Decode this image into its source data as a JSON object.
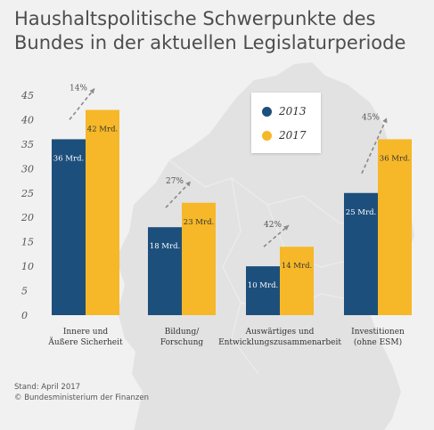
{
  "title_line1": "Haushaltspolitische Schwerpunkte des",
  "title_line2": "Bundes in der aktuellen Legislaturperiode",
  "footer": {
    "stand": "Stand: April 2017",
    "source": "© Bundesministerium der Finanzen"
  },
  "colors": {
    "series_2013": "#1d4f7c",
    "series_2017": "#f6b828",
    "background": "#f1f1f1",
    "map": "#e2e2e2",
    "axis_text": "#555555"
  },
  "chart_data": {
    "type": "bar",
    "title": "Haushaltspolitische Schwerpunkte des Bundes in der aktuellen Legislaturperiode",
    "xlabel": "",
    "ylabel": "",
    "ylim": [
      0,
      45
    ],
    "yticks": [
      "0",
      "5",
      "10",
      "15",
      "20",
      "25",
      "30",
      "35",
      "40",
      "45"
    ],
    "grid": false,
    "legend_position": "top-right",
    "categories": [
      [
        "Innere und",
        "Äußere Sicherheit"
      ],
      [
        "Bildung/",
        "Forschung"
      ],
      [
        "Auswärtiges und",
        "Entwicklungszusammenarbeit"
      ],
      [
        "Investitionen",
        "(ohne ESM)"
      ]
    ],
    "series": [
      {
        "name": "2013",
        "values": [
          36,
          18,
          10,
          25
        ],
        "labels": [
          "36 Mrd.",
          "18 Mrd.",
          "10 Mrd.",
          "25 Mrd."
        ]
      },
      {
        "name": "2017",
        "values": [
          42,
          23,
          14,
          36
        ],
        "labels": [
          "42 Mrd.",
          "23 Mrd.",
          "14 Mrd.",
          "36 Mrd."
        ]
      }
    ],
    "growth_labels": [
      "14%",
      "27%",
      "42%",
      "45%"
    ]
  }
}
